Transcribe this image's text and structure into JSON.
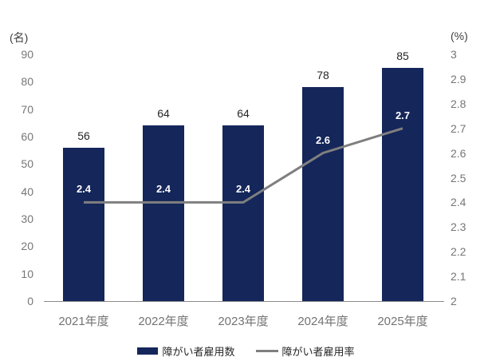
{
  "chart_data": {
    "type": "bar+line",
    "categories": [
      "2021年度",
      "2022年度",
      "2023年度",
      "2024年度",
      "2025年度"
    ],
    "series": [
      {
        "name": "障がい者雇用数",
        "chart_type": "bar",
        "axis": "left",
        "values": [
          56,
          64,
          64,
          78,
          85
        ],
        "data_labels": [
          "56",
          "64",
          "64",
          "78",
          "85"
        ],
        "color": "#14265A",
        "label_color": "#262626"
      },
      {
        "name": "障がい者雇用率",
        "chart_type": "line",
        "axis": "right",
        "values": [
          2.4,
          2.4,
          2.4,
          2.6,
          2.7
        ],
        "data_labels": [
          "2.4",
          "2.4",
          "2.4",
          "2.6",
          "2.7"
        ],
        "color": "#7F7F7F",
        "label_color": "#FFFFFF"
      }
    ],
    "left_axis": {
      "title": "(名)",
      "min": 0,
      "max": 90,
      "tick_labels": [
        "90",
        "80",
        "70",
        "60",
        "50",
        "40",
        "30",
        "20",
        "10",
        "0"
      ]
    },
    "right_axis": {
      "title": "(%)",
      "min": 2,
      "max": 3,
      "tick_labels": [
        "3",
        "2.9",
        "2.8",
        "2.7",
        "2.6",
        "2.5",
        "2.4",
        "2.3",
        "2.2",
        "2.1",
        "2"
      ]
    },
    "grid": "off",
    "legend_position": "bottom"
  }
}
